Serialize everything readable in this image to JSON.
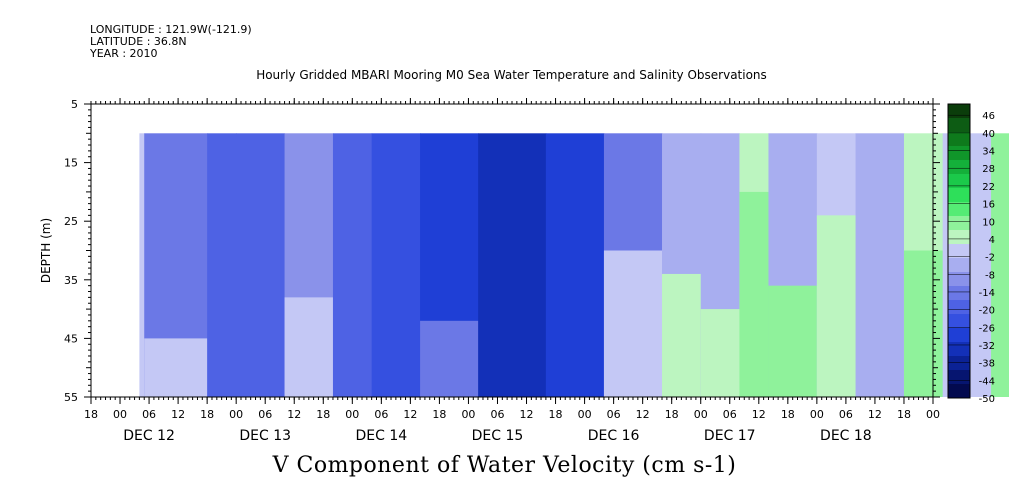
{
  "header": {
    "longitude": "LONGITUDE : 121.9W(-121.9)",
    "latitude": "LATITUDE : 36.8N",
    "year": "YEAR : 2010"
  },
  "chart_data": {
    "type": "heatmap",
    "title": "Hourly Gridded MBARI Mooring M0 Sea Water Temperature and Salinity Observations",
    "xlabel": "V Component of Water Velocity (cm s-1)",
    "ylabel": "DEPTH (m)",
    "ylim": [
      55,
      5
    ],
    "y_ticks": [
      5,
      15,
      25,
      35,
      45,
      55
    ],
    "x_days": [
      "DEC 12",
      "DEC 13",
      "DEC 14",
      "DEC 15",
      "DEC 16",
      "DEC 17",
      "DEC 18"
    ],
    "x_hour_labels": [
      "00",
      "06",
      "12",
      "18"
    ],
    "data_start_hour": 4,
    "data_depth_top": 10,
    "colorbar_levels": [
      "46",
      "40",
      "34",
      "28",
      "22",
      "16",
      "10",
      "4",
      "-2",
      "-8",
      "-14",
      "-20",
      "-26",
      "-32",
      "-38",
      "-44",
      "-50"
    ],
    "colorbar_colors": [
      "#0b3d0b",
      "#0d5c14",
      "#0e7a1c",
      "#10962a",
      "#14b03a",
      "#1bc94a",
      "#2edf5a",
      "#55ec75",
      "#8ff29b",
      "#bcf5c0",
      "#c4c8f5",
      "#a8aef0",
      "#8a92ea",
      "#6b78e6",
      "#4e62e4",
      "#3550e0",
      "#1f3fd6",
      "#1330b8",
      "#0b2295",
      "#061570",
      "#030a4f"
    ],
    "bands": [
      {
        "start": 0,
        "end": 1,
        "value": 2
      },
      {
        "start": 1,
        "end": 14,
        "value": -12,
        "bottom_start": 45,
        "bottom_value": 0
      },
      {
        "start": 14,
        "end": 20,
        "value": -18
      },
      {
        "start": 20,
        "end": 30,
        "value": -20
      },
      {
        "start": 30,
        "end": 40,
        "value": -10,
        "bottom_start": 38,
        "bottom_value": 2
      },
      {
        "start": 40,
        "end": 48,
        "value": -18
      },
      {
        "start": 48,
        "end": 58,
        "value": -26
      },
      {
        "start": 58,
        "end": 70,
        "value": -30,
        "bottom_start": 42,
        "bottom_value": -14
      },
      {
        "start": 70,
        "end": 84,
        "value": -36
      },
      {
        "start": 84,
        "end": 96,
        "value": -28
      },
      {
        "start": 96,
        "end": 108,
        "value": -12,
        "bottom_start": 30,
        "bottom_value": 2
      },
      {
        "start": 108,
        "end": 116,
        "value": -6,
        "bottom_start": 34,
        "bottom_value": 4
      },
      {
        "start": 116,
        "end": 124,
        "value": -4,
        "bottom_start": 40,
        "bottom_value": 8
      },
      {
        "start": 124,
        "end": 130,
        "value": 4,
        "bottom_start": 20,
        "bottom_value": 10
      },
      {
        "start": 130,
        "end": 140,
        "value": -6,
        "bottom_start": 36,
        "bottom_value": 10
      },
      {
        "start": 140,
        "end": 148,
        "value": 2,
        "bottom_start": 24,
        "bottom_value": 8
      },
      {
        "start": 148,
        "end": 158,
        "value": -6
      },
      {
        "start": 158,
        "end": 166,
        "value": 6,
        "bottom_start": 30,
        "bottom_value": 12
      },
      {
        "start": 166,
        "end": 176,
        "value": 2
      },
      {
        "start": 176,
        "end": 186,
        "value": 10
      },
      {
        "start": 186,
        "end": 196,
        "value": 6
      },
      {
        "start": 196,
        "end": 204,
        "value": -4,
        "bottom_start": 42,
        "bottom_value": 4
      },
      {
        "start": 204,
        "end": 214,
        "value": 2
      },
      {
        "start": 214,
        "end": 220,
        "value": 12,
        "bottom_start": 30,
        "bottom_value": 16
      }
    ]
  }
}
